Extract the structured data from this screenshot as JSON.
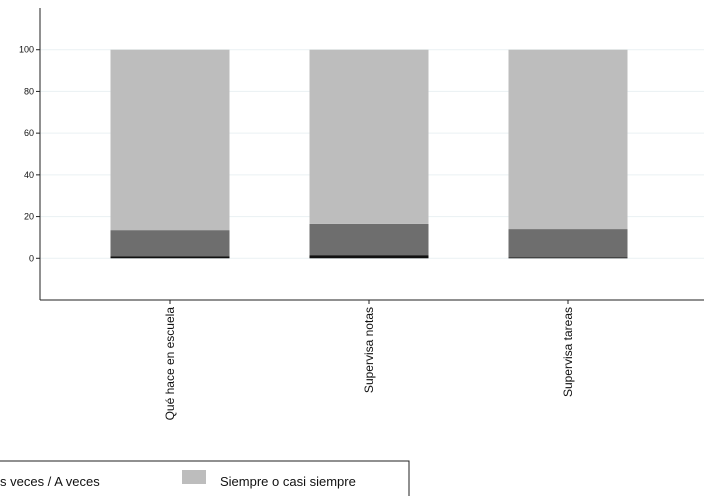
{
  "chart_data": {
    "type": "bar",
    "stacked": true,
    "categories": [
      "Qué hace en escuela",
      "Supervisa notas",
      "Supervisa tareas"
    ],
    "series": [
      {
        "name": "",
        "color": "#111111",
        "values": [
          1,
          1.5,
          0.5
        ]
      },
      {
        "name": "s veces / A veces",
        "color": "#6e6e6e",
        "values": [
          12.5,
          15,
          13.5
        ]
      },
      {
        "name": "Siempre o casi siempre",
        "color": "#bdbdbd",
        "values": [
          86.5,
          83.5,
          86
        ]
      }
    ],
    "yticks": [
      0,
      20,
      40,
      60,
      80,
      100
    ],
    "ylim": [
      -20,
      120
    ],
    "grid": true,
    "legend_position": "bottom"
  }
}
